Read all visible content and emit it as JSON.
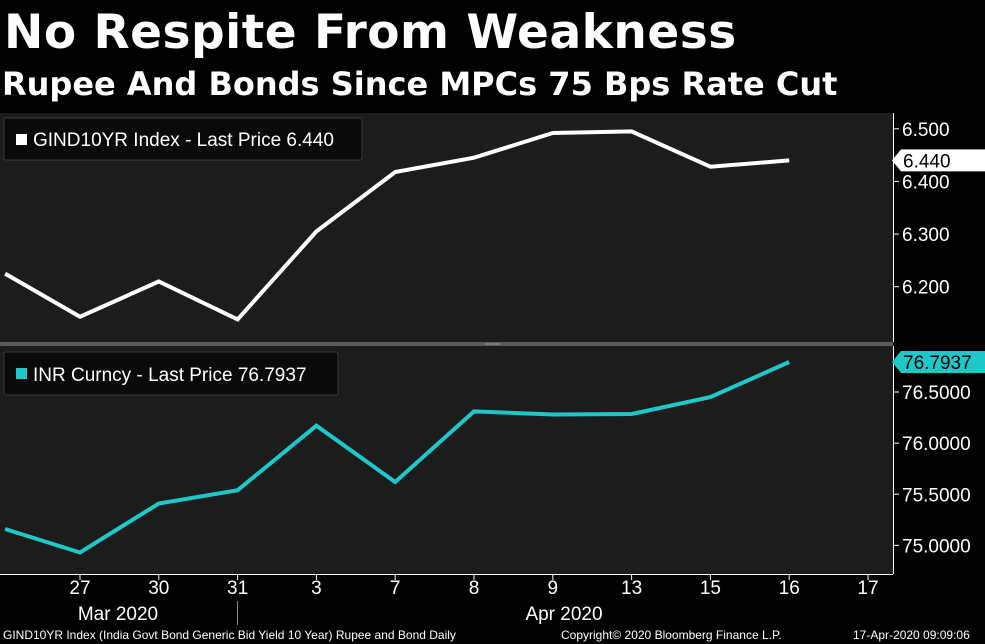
{
  "header": {
    "title": "No Respite From Weakness",
    "subtitle": "Rupee And Bonds Since MPCs 75 Bps Rate Cut"
  },
  "footer": {
    "description": "GIND10YR Index (India Govt Bond Generic Bid Yield 10 Year) Rupee and Bond  Daily",
    "copyright": "Copyright© 2020 Bloomberg Finance L.P.",
    "timestamp": "17-Apr-2020 09:09:06"
  },
  "colors": {
    "bond": "#ffffff",
    "rupee": "#1ec8c8",
    "panel_bg": "#1c1c1c",
    "separator": "#5a5a5a"
  },
  "chart_data": {
    "type": "line",
    "x_labels": [
      "27",
      "30",
      "31",
      "3",
      "7",
      "8",
      "9",
      "13",
      "15",
      "16",
      "17"
    ],
    "month_labels": [
      "Mar 2020",
      "Apr 2020"
    ],
    "panels": [
      {
        "name": "bond",
        "legend": "GIND10YR Index - Last Price 6.440",
        "last_label": "6.440",
        "last_value": 6.44,
        "ylim": [
          6.095,
          6.53
        ],
        "yticks": [
          6.5,
          6.4,
          6.3,
          6.2
        ],
        "ytick_labels": [
          "6.500",
          "6.400",
          "6.300",
          "6.200"
        ],
        "series": [
          {
            "x": -0.95,
            "y": 6.225
          },
          {
            "x": 0,
            "y": 6.143
          },
          {
            "x": 1,
            "y": 6.21
          },
          {
            "x": 2,
            "y": 6.138
          },
          {
            "x": 3,
            "y": 6.305
          },
          {
            "x": 4,
            "y": 6.418
          },
          {
            "x": 5,
            "y": 6.445
          },
          {
            "x": 6,
            "y": 6.492
          },
          {
            "x": 7,
            "y": 6.495
          },
          {
            "x": 8,
            "y": 6.428
          },
          {
            "x": 9,
            "y": 6.44
          }
        ]
      },
      {
        "name": "rupee",
        "legend": "INR Curncy - Last Price 76.7937",
        "last_label": "76.7937",
        "last_value": 76.7937,
        "ylim": [
          74.72,
          76.95
        ],
        "yticks": [
          76.5,
          76.0,
          75.5,
          75.0
        ],
        "ytick_labels": [
          "76.5000",
          "76.0000",
          "75.5000",
          "75.0000"
        ],
        "series": [
          {
            "x": -0.95,
            "y": 75.16
          },
          {
            "x": 0,
            "y": 74.93
          },
          {
            "x": 1,
            "y": 75.41
          },
          {
            "x": 2,
            "y": 75.54
          },
          {
            "x": 3,
            "y": 76.17
          },
          {
            "x": 4,
            "y": 75.62
          },
          {
            "x": 5,
            "y": 76.31
          },
          {
            "x": 6,
            "y": 76.28
          },
          {
            "x": 7,
            "y": 76.285
          },
          {
            "x": 8,
            "y": 76.45
          },
          {
            "x": 9,
            "y": 76.7937
          }
        ]
      }
    ]
  }
}
